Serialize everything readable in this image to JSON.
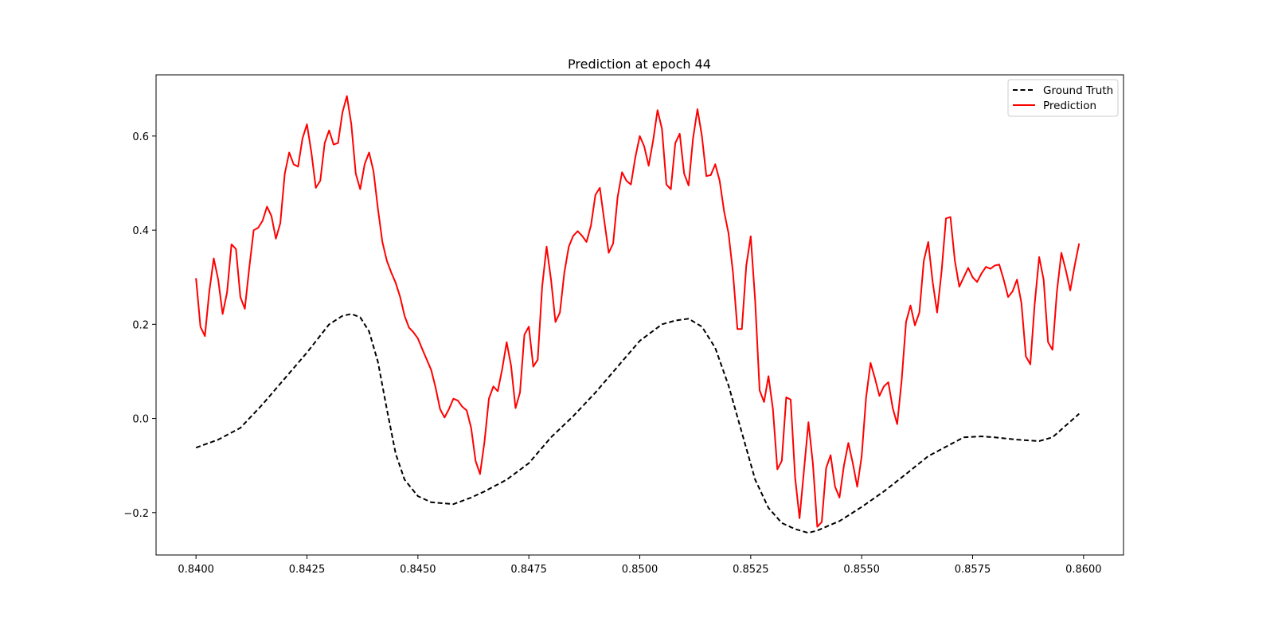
{
  "chart_data": {
    "type": "line",
    "title": "Prediction at epoch 44",
    "xlabel": "",
    "ylabel": "",
    "xlim": [
      0.8391,
      0.8609
    ],
    "ylim": [
      -0.29,
      0.73
    ],
    "x_ticks": [
      0.84,
      0.8425,
      0.845,
      0.8475,
      0.85,
      0.8525,
      0.855,
      0.8575,
      0.86
    ],
    "x_tick_labels": [
      "0.8400",
      "0.8425",
      "0.8450",
      "0.8475",
      "0.8500",
      "0.8525",
      "0.8550",
      "0.8575",
      "0.8600"
    ],
    "y_ticks": [
      -0.2,
      0.0,
      0.2,
      0.4,
      0.6
    ],
    "y_tick_labels": [
      "−0.2",
      "0.0",
      "0.2",
      "0.4",
      "0.6"
    ],
    "grid": false,
    "legend_position": "top-right",
    "series": [
      {
        "name": "Ground Truth",
        "color": "#000000",
        "style": "dashed",
        "points": [
          [
            0.84,
            -0.062
          ],
          [
            0.8405,
            -0.045
          ],
          [
            0.841,
            -0.02
          ],
          [
            0.8415,
            0.03
          ],
          [
            0.842,
            0.085
          ],
          [
            0.8425,
            0.14
          ],
          [
            0.843,
            0.2
          ],
          [
            0.8433,
            0.218
          ],
          [
            0.8435,
            0.222
          ],
          [
            0.8437,
            0.215
          ],
          [
            0.8439,
            0.185
          ],
          [
            0.8441,
            0.12
          ],
          [
            0.8443,
            0.02
          ],
          [
            0.8445,
            -0.075
          ],
          [
            0.8447,
            -0.13
          ],
          [
            0.845,
            -0.165
          ],
          [
            0.8453,
            -0.178
          ],
          [
            0.8458,
            -0.182
          ],
          [
            0.8462,
            -0.168
          ],
          [
            0.8465,
            -0.155
          ],
          [
            0.847,
            -0.13
          ],
          [
            0.8475,
            -0.095
          ],
          [
            0.848,
            -0.04
          ],
          [
            0.8485,
            0.005
          ],
          [
            0.849,
            0.055
          ],
          [
            0.8495,
            0.11
          ],
          [
            0.85,
            0.165
          ],
          [
            0.8505,
            0.2
          ],
          [
            0.8508,
            0.208
          ],
          [
            0.8511,
            0.212
          ],
          [
            0.8514,
            0.195
          ],
          [
            0.8517,
            0.15
          ],
          [
            0.852,
            0.07
          ],
          [
            0.8523,
            -0.03
          ],
          [
            0.8526,
            -0.13
          ],
          [
            0.8529,
            -0.19
          ],
          [
            0.8532,
            -0.222
          ],
          [
            0.8535,
            -0.235
          ],
          [
            0.8538,
            -0.243
          ],
          [
            0.854,
            -0.238
          ],
          [
            0.8545,
            -0.218
          ],
          [
            0.855,
            -0.188
          ],
          [
            0.8555,
            -0.155
          ],
          [
            0.856,
            -0.118
          ],
          [
            0.8565,
            -0.08
          ],
          [
            0.857,
            -0.055
          ],
          [
            0.8573,
            -0.04
          ],
          [
            0.8577,
            -0.038
          ],
          [
            0.858,
            -0.04
          ],
          [
            0.8585,
            -0.045
          ],
          [
            0.859,
            -0.048
          ],
          [
            0.8593,
            -0.04
          ],
          [
            0.8596,
            -0.015
          ],
          [
            0.8599,
            0.01
          ]
        ]
      },
      {
        "name": "Prediction",
        "color": "#ff0000",
        "style": "solid",
        "points": [
          [
            0.84,
            0.298
          ],
          [
            0.8401,
            0.195
          ],
          [
            0.8402,
            0.175
          ],
          [
            0.8403,
            0.27
          ],
          [
            0.8404,
            0.34
          ],
          [
            0.8405,
            0.295
          ],
          [
            0.8406,
            0.222
          ],
          [
            0.8407,
            0.268
          ],
          [
            0.8408,
            0.37
          ],
          [
            0.8409,
            0.36
          ],
          [
            0.841,
            0.258
          ],
          [
            0.8411,
            0.233
          ],
          [
            0.8412,
            0.32
          ],
          [
            0.8413,
            0.4
          ],
          [
            0.8414,
            0.405
          ],
          [
            0.8415,
            0.42
          ],
          [
            0.8416,
            0.45
          ],
          [
            0.8417,
            0.43
          ],
          [
            0.8418,
            0.382
          ],
          [
            0.8419,
            0.415
          ],
          [
            0.842,
            0.52
          ],
          [
            0.8421,
            0.565
          ],
          [
            0.8422,
            0.54
          ],
          [
            0.8423,
            0.535
          ],
          [
            0.8424,
            0.595
          ],
          [
            0.8425,
            0.625
          ],
          [
            0.8426,
            0.565
          ],
          [
            0.8427,
            0.49
          ],
          [
            0.8428,
            0.505
          ],
          [
            0.8429,
            0.585
          ],
          [
            0.843,
            0.612
          ],
          [
            0.8431,
            0.582
          ],
          [
            0.8432,
            0.585
          ],
          [
            0.8433,
            0.65
          ],
          [
            0.8434,
            0.685
          ],
          [
            0.8435,
            0.625
          ],
          [
            0.8436,
            0.52
          ],
          [
            0.8437,
            0.487
          ],
          [
            0.8438,
            0.54
          ],
          [
            0.8439,
            0.565
          ],
          [
            0.844,
            0.525
          ],
          [
            0.8441,
            0.445
          ],
          [
            0.8442,
            0.375
          ],
          [
            0.8443,
            0.335
          ],
          [
            0.8444,
            0.31
          ],
          [
            0.8445,
            0.288
          ],
          [
            0.8446,
            0.258
          ],
          [
            0.8447,
            0.218
          ],
          [
            0.8448,
            0.193
          ],
          [
            0.8449,
            0.183
          ],
          [
            0.845,
            0.17
          ],
          [
            0.8451,
            0.147
          ],
          [
            0.8452,
            0.125
          ],
          [
            0.8453,
            0.103
          ],
          [
            0.8454,
            0.065
          ],
          [
            0.8455,
            0.02
          ],
          [
            0.8456,
            0.002
          ],
          [
            0.8457,
            0.02
          ],
          [
            0.8458,
            0.042
          ],
          [
            0.8459,
            0.038
          ],
          [
            0.846,
            0.025
          ],
          [
            0.8461,
            0.017
          ],
          [
            0.8462,
            -0.02
          ],
          [
            0.8463,
            -0.09
          ],
          [
            0.8464,
            -0.118
          ],
          [
            0.8465,
            -0.05
          ],
          [
            0.8466,
            0.042
          ],
          [
            0.8467,
            0.068
          ],
          [
            0.8468,
            0.058
          ],
          [
            0.8469,
            0.105
          ],
          [
            0.847,
            0.162
          ],
          [
            0.8471,
            0.112
          ],
          [
            0.8472,
            0.022
          ],
          [
            0.8473,
            0.055
          ],
          [
            0.8474,
            0.178
          ],
          [
            0.8475,
            0.195
          ],
          [
            0.8476,
            0.11
          ],
          [
            0.8477,
            0.125
          ],
          [
            0.8478,
            0.28
          ],
          [
            0.8479,
            0.365
          ],
          [
            0.848,
            0.295
          ],
          [
            0.8481,
            0.205
          ],
          [
            0.8482,
            0.225
          ],
          [
            0.8483,
            0.31
          ],
          [
            0.8484,
            0.365
          ],
          [
            0.8485,
            0.388
          ],
          [
            0.8486,
            0.398
          ],
          [
            0.8487,
            0.388
          ],
          [
            0.8488,
            0.375
          ],
          [
            0.8489,
            0.41
          ],
          [
            0.849,
            0.475
          ],
          [
            0.8491,
            0.49
          ],
          [
            0.8492,
            0.42
          ],
          [
            0.8493,
            0.352
          ],
          [
            0.8494,
            0.372
          ],
          [
            0.8495,
            0.47
          ],
          [
            0.8496,
            0.523
          ],
          [
            0.8497,
            0.505
          ],
          [
            0.8498,
            0.497
          ],
          [
            0.8499,
            0.555
          ],
          [
            0.85,
            0.6
          ],
          [
            0.8501,
            0.578
          ],
          [
            0.8502,
            0.537
          ],
          [
            0.8503,
            0.59
          ],
          [
            0.8504,
            0.655
          ],
          [
            0.8505,
            0.615
          ],
          [
            0.8506,
            0.497
          ],
          [
            0.8507,
            0.487
          ],
          [
            0.8508,
            0.585
          ],
          [
            0.8509,
            0.605
          ],
          [
            0.851,
            0.52
          ],
          [
            0.8511,
            0.495
          ],
          [
            0.8512,
            0.595
          ],
          [
            0.8513,
            0.657
          ],
          [
            0.8514,
            0.6
          ],
          [
            0.8515,
            0.515
          ],
          [
            0.8516,
            0.517
          ],
          [
            0.8517,
            0.54
          ],
          [
            0.8518,
            0.505
          ],
          [
            0.8519,
            0.44
          ],
          [
            0.852,
            0.393
          ],
          [
            0.8521,
            0.31
          ],
          [
            0.8522,
            0.19
          ],
          [
            0.8523,
            0.19
          ],
          [
            0.8524,
            0.325
          ],
          [
            0.8525,
            0.387
          ],
          [
            0.8526,
            0.25
          ],
          [
            0.8527,
            0.06
          ],
          [
            0.8528,
            0.035
          ],
          [
            0.8529,
            0.09
          ],
          [
            0.853,
            0.02
          ],
          [
            0.8531,
            -0.108
          ],
          [
            0.8532,
            -0.09
          ],
          [
            0.8533,
            0.045
          ],
          [
            0.8534,
            0.04
          ],
          [
            0.8535,
            -0.125
          ],
          [
            0.8536,
            -0.212
          ],
          [
            0.8537,
            -0.11
          ],
          [
            0.8538,
            -0.008
          ],
          [
            0.8539,
            -0.095
          ],
          [
            0.854,
            -0.23
          ],
          [
            0.8541,
            -0.22
          ],
          [
            0.8542,
            -0.105
          ],
          [
            0.8543,
            -0.078
          ],
          [
            0.8544,
            -0.145
          ],
          [
            0.8545,
            -0.168
          ],
          [
            0.8546,
            -0.1
          ],
          [
            0.8547,
            -0.052
          ],
          [
            0.8548,
            -0.095
          ],
          [
            0.8549,
            -0.145
          ],
          [
            0.855,
            -0.08
          ],
          [
            0.8551,
            0.045
          ],
          [
            0.8552,
            0.118
          ],
          [
            0.8553,
            0.085
          ],
          [
            0.8554,
            0.048
          ],
          [
            0.8555,
            0.068
          ],
          [
            0.8556,
            0.077
          ],
          [
            0.8557,
            0.022
          ],
          [
            0.8558,
            -0.012
          ],
          [
            0.8559,
            0.08
          ],
          [
            0.856,
            0.205
          ],
          [
            0.8561,
            0.24
          ],
          [
            0.8562,
            0.198
          ],
          [
            0.8563,
            0.225
          ],
          [
            0.8564,
            0.335
          ],
          [
            0.8565,
            0.375
          ],
          [
            0.8566,
            0.29
          ],
          [
            0.8567,
            0.225
          ],
          [
            0.8568,
            0.312
          ],
          [
            0.8569,
            0.425
          ],
          [
            0.857,
            0.428
          ],
          [
            0.8571,
            0.335
          ],
          [
            0.8572,
            0.28
          ],
          [
            0.8573,
            0.3
          ],
          [
            0.8574,
            0.32
          ],
          [
            0.8575,
            0.3
          ],
          [
            0.8576,
            0.29
          ],
          [
            0.8577,
            0.308
          ],
          [
            0.8578,
            0.322
          ],
          [
            0.8579,
            0.318
          ],
          [
            0.858,
            0.325
          ],
          [
            0.8581,
            0.327
          ],
          [
            0.8582,
            0.295
          ],
          [
            0.8583,
            0.258
          ],
          [
            0.8584,
            0.27
          ],
          [
            0.8585,
            0.295
          ],
          [
            0.8586,
            0.245
          ],
          [
            0.8587,
            0.132
          ],
          [
            0.8588,
            0.115
          ],
          [
            0.8589,
            0.245
          ],
          [
            0.859,
            0.343
          ],
          [
            0.8591,
            0.295
          ],
          [
            0.8592,
            0.162
          ],
          [
            0.8593,
            0.146
          ],
          [
            0.8594,
            0.27
          ],
          [
            0.8595,
            0.352
          ],
          [
            0.8596,
            0.315
          ],
          [
            0.8597,
            0.272
          ],
          [
            0.8598,
            0.325
          ],
          [
            0.8599,
            0.372
          ]
        ]
      }
    ]
  }
}
